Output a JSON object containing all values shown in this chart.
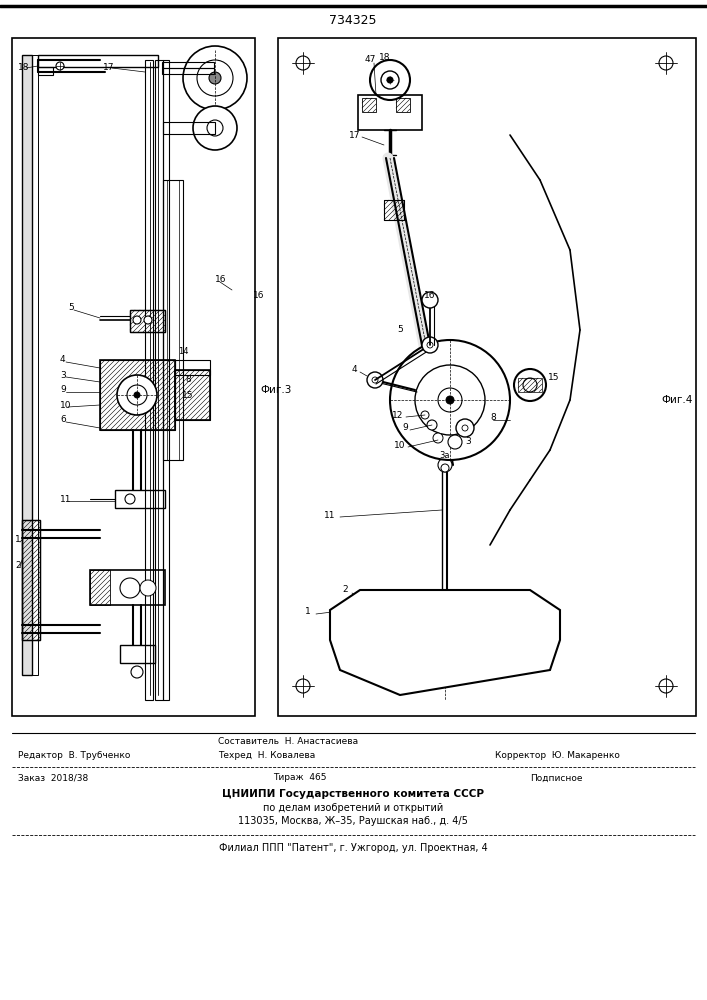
{
  "patent_number": "734325",
  "bg_color": "#ffffff",
  "fig_width": 7.07,
  "fig_height": 10.0,
  "footer": {
    "editor": "Редактор  В. Трубченко",
    "composer": "Составитель  Н. Анастасиева",
    "techred": "Техред  Н. Ковалева",
    "corrector": "Корректор  Ю. Макаренко",
    "order": "Заказ  2018/38",
    "print_run": "Тираж  465",
    "subscription": "Подписное",
    "org": "ЦНИИПИ Государственного комитета СССР",
    "org2": "по делам изобретений и открытий",
    "address": "113035, Москва, Ж–35, Раушская наб., д. 4/5",
    "branch": "Филиал ППП \"Патент\", г. Ужгород, ул. Проектная, 4"
  }
}
